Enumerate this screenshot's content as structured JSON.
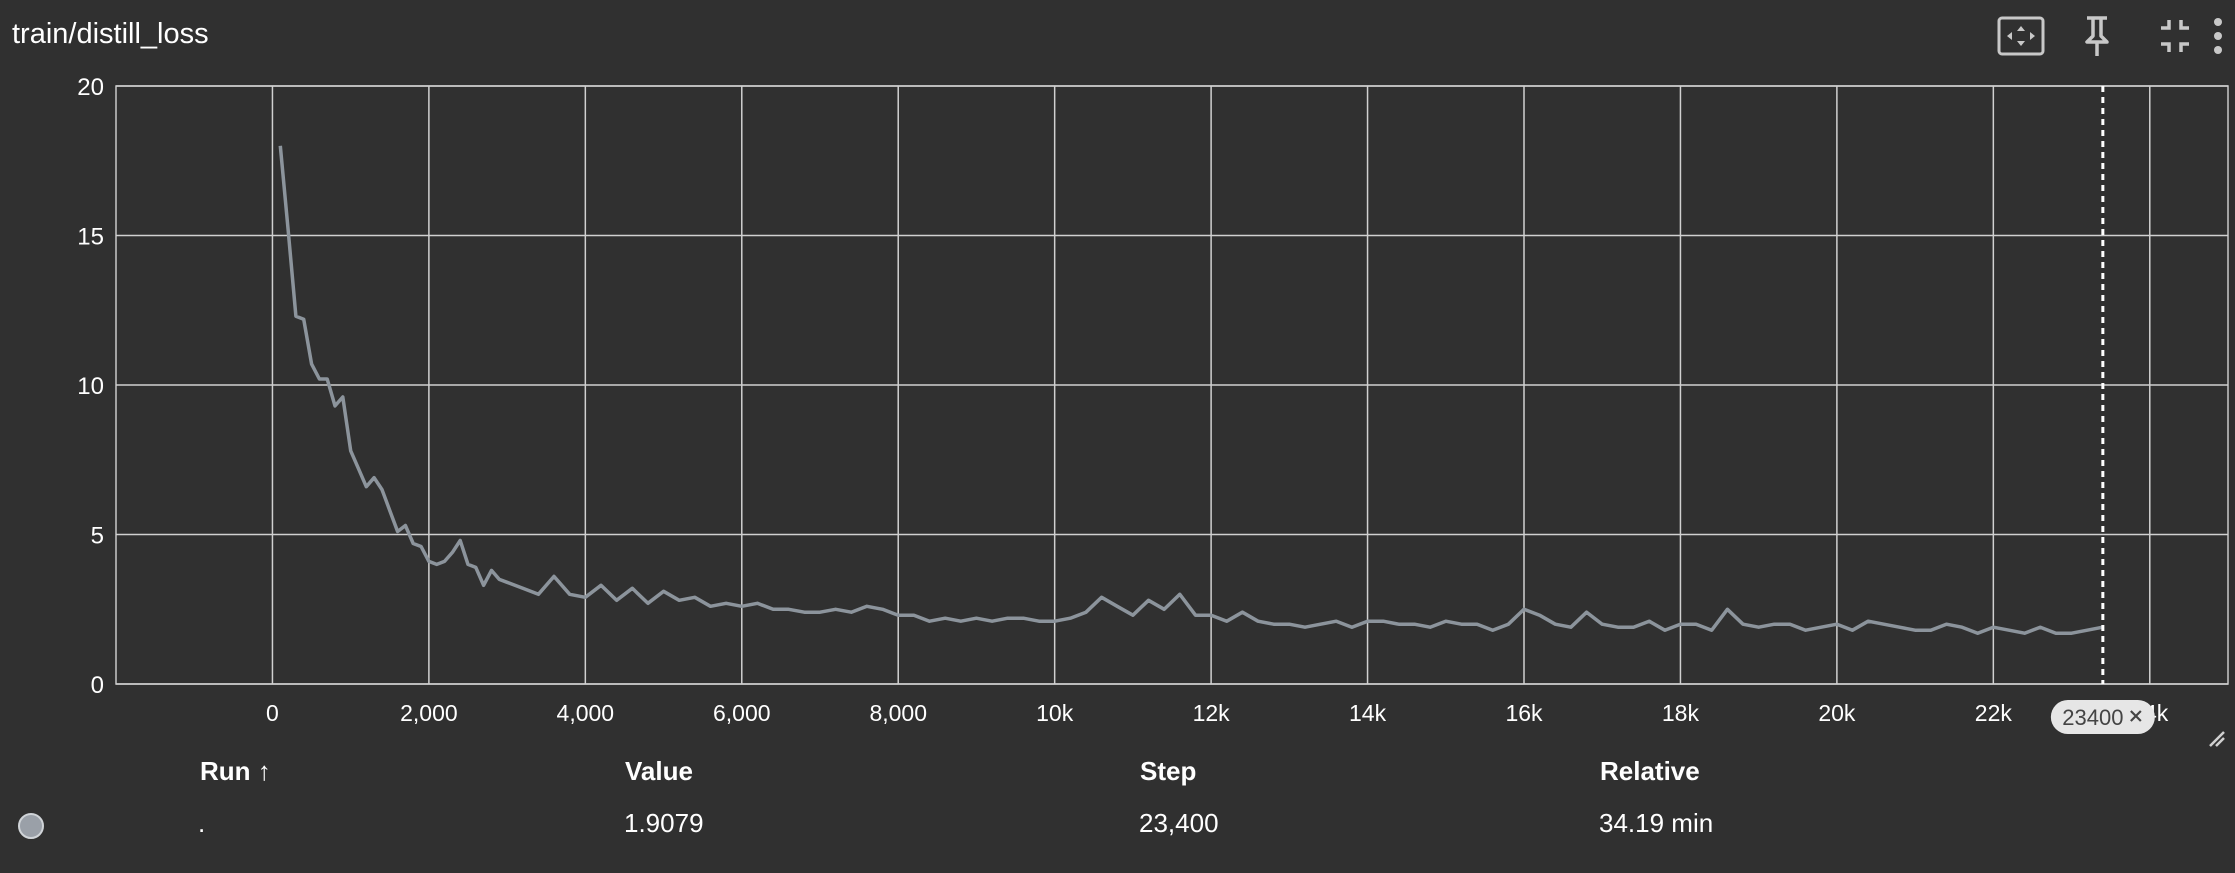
{
  "card": {
    "title": "train/distill_loss"
  },
  "toolbar": [
    {
      "icon": "fit-to-data-icon"
    },
    {
      "icon": "pin-icon"
    },
    {
      "icon": "collapse-icon"
    },
    {
      "icon": "more-vertical-icon"
    }
  ],
  "chart_data": {
    "type": "line",
    "title": "",
    "xlabel": "",
    "ylabel": "",
    "xlim": [
      -2000,
      25000
    ],
    "ylim": [
      0,
      20
    ],
    "grid": true,
    "x_ticks": [
      0,
      2000,
      4000,
      6000,
      8000,
      10000,
      12000,
      14000,
      16000,
      18000,
      20000,
      22000,
      24000
    ],
    "x_tick_labels": [
      "0",
      "2,000",
      "4,000",
      "6,000",
      "8,000",
      "10k",
      "12k",
      "14k",
      "16k",
      "18k",
      "20k",
      "22k",
      "24k"
    ],
    "y_ticks": [
      0,
      5,
      10,
      15,
      20
    ],
    "y_tick_labels": [
      "0",
      "5",
      "10",
      "15",
      "20"
    ],
    "series": [
      {
        "name": ".",
        "color": "#8c949c",
        "x": [
          100,
          200,
          300,
          400,
          500,
          600,
          700,
          800,
          900,
          1000,
          1100,
          1200,
          1300,
          1400,
          1500,
          1600,
          1700,
          1800,
          1900,
          2000,
          2100,
          2200,
          2300,
          2400,
          2500,
          2600,
          2700,
          2800,
          2900,
          3000,
          3200,
          3400,
          3600,
          3800,
          4000,
          4200,
          4400,
          4600,
          4800,
          5000,
          5200,
          5400,
          5600,
          5800,
          6000,
          6200,
          6400,
          6600,
          6800,
          7000,
          7200,
          7400,
          7600,
          7800,
          8000,
          8200,
          8400,
          8600,
          8800,
          9000,
          9200,
          9400,
          9600,
          9800,
          10000,
          10200,
          10400,
          10600,
          10800,
          11000,
          11200,
          11400,
          11600,
          11800,
          12000,
          12200,
          12400,
          12600,
          12800,
          13000,
          13200,
          13400,
          13600,
          13800,
          14000,
          14200,
          14400,
          14600,
          14800,
          15000,
          15200,
          15400,
          15600,
          15800,
          16000,
          16200,
          16400,
          16600,
          16800,
          17000,
          17200,
          17400,
          17600,
          17800,
          18000,
          18200,
          18400,
          18600,
          18800,
          19000,
          19200,
          19400,
          19600,
          19800,
          20000,
          20200,
          20400,
          20600,
          20800,
          21000,
          21200,
          21400,
          21600,
          21800,
          22000,
          22200,
          22400,
          22600,
          22800,
          23000,
          23200,
          23400
        ],
        "y": [
          18.0,
          15.2,
          12.3,
          12.2,
          10.7,
          10.2,
          10.2,
          9.3,
          9.6,
          7.8,
          7.2,
          6.6,
          6.9,
          6.5,
          5.8,
          5.1,
          5.3,
          4.7,
          4.6,
          4.1,
          4.0,
          4.1,
          4.4,
          4.8,
          4.0,
          3.9,
          3.3,
          3.8,
          3.5,
          3.4,
          3.2,
          3.0,
          3.6,
          3.0,
          2.9,
          3.3,
          2.8,
          3.2,
          2.7,
          3.1,
          2.8,
          2.9,
          2.6,
          2.7,
          2.6,
          2.7,
          2.5,
          2.5,
          2.4,
          2.4,
          2.5,
          2.4,
          2.6,
          2.5,
          2.3,
          2.3,
          2.1,
          2.2,
          2.1,
          2.2,
          2.1,
          2.2,
          2.2,
          2.1,
          2.1,
          2.2,
          2.4,
          2.9,
          2.6,
          2.3,
          2.8,
          2.5,
          3.0,
          2.3,
          2.3,
          2.1,
          2.4,
          2.1,
          2.0,
          2.0,
          1.9,
          2.0,
          2.1,
          1.9,
          2.1,
          2.1,
          2.0,
          2.0,
          1.9,
          2.1,
          2.0,
          2.0,
          1.8,
          2.0,
          2.5,
          2.3,
          2.0,
          1.9,
          2.4,
          2.0,
          1.9,
          1.9,
          2.1,
          1.8,
          2.0,
          2.0,
          1.8,
          2.5,
          2.0,
          1.9,
          2.0,
          2.0,
          1.8,
          1.9,
          2.0,
          1.8,
          2.1,
          2.0,
          1.9,
          1.8,
          1.8,
          2.0,
          1.9,
          1.7,
          1.9,
          1.8,
          1.7,
          1.9,
          1.7,
          1.7,
          1.8,
          1.9
        ]
      }
    ],
    "hover": {
      "step_label": "23400"
    }
  },
  "table": {
    "headers": {
      "run": "Run",
      "sort_arrow": "↑",
      "value": "Value",
      "step": "Step",
      "relative": "Relative"
    },
    "rows": [
      {
        "run": ".",
        "value": "1.9079",
        "step": "23,400",
        "relative": "34.19 min",
        "color": "#9aa0a8"
      }
    ]
  }
}
